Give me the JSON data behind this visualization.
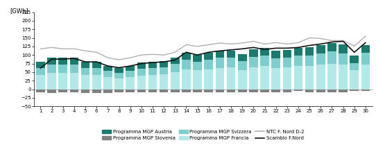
{
  "days": [
    1,
    2,
    3,
    4,
    5,
    6,
    7,
    8,
    9,
    10,
    11,
    12,
    13,
    14,
    15,
    16,
    17,
    18,
    19,
    20,
    21,
    22,
    23,
    24,
    25,
    26,
    27,
    28,
    29,
    30
  ],
  "austria": [
    18,
    20,
    20,
    20,
    18,
    18,
    16,
    16,
    16,
    18,
    18,
    18,
    18,
    20,
    20,
    20,
    20,
    20,
    20,
    22,
    22,
    22,
    22,
    22,
    25,
    25,
    25,
    25,
    22,
    22
  ],
  "slovenia": [
    -8,
    -10,
    -8,
    -8,
    -10,
    -10,
    -10,
    -8,
    -8,
    -8,
    -8,
    -8,
    -8,
    -8,
    -8,
    -8,
    -8,
    -8,
    -8,
    -8,
    -8,
    -8,
    -8,
    -5,
    -8,
    -8,
    -8,
    -8,
    -5,
    -5
  ],
  "svizzera": [
    20,
    25,
    25,
    24,
    20,
    20,
    18,
    15,
    18,
    20,
    20,
    20,
    25,
    28,
    25,
    28,
    30,
    28,
    28,
    30,
    30,
    28,
    28,
    30,
    30,
    32,
    35,
    33,
    22,
    35
  ],
  "francia": [
    42,
    48,
    48,
    48,
    42,
    42,
    35,
    32,
    35,
    40,
    42,
    44,
    50,
    58,
    55,
    58,
    62,
    65,
    55,
    65,
    68,
    62,
    65,
    68,
    68,
    72,
    75,
    72,
    55,
    72
  ],
  "ntc": [
    118,
    122,
    118,
    118,
    112,
    108,
    92,
    86,
    92,
    100,
    102,
    100,
    108,
    130,
    125,
    130,
    135,
    132,
    135,
    140,
    132,
    136,
    132,
    136,
    150,
    148,
    142,
    142,
    126,
    155
  ],
  "scambio": [
    62,
    88,
    88,
    90,
    80,
    80,
    68,
    63,
    68,
    75,
    78,
    80,
    85,
    108,
    100,
    108,
    112,
    115,
    118,
    122,
    116,
    120,
    120,
    122,
    128,
    132,
    138,
    140,
    108,
    136
  ],
  "color_austria": "#1a7a6e",
  "color_slovenia": "#808080",
  "color_svizzera": "#7ecece",
  "color_francia": "#b2e8e8",
  "color_ntc": "#b0b0b0",
  "color_scambio": "#111111",
  "ylabel": "[GWh]",
  "ylim_min": -50,
  "ylim_max": 225,
  "yticks": [
    -50,
    -25,
    0,
    25,
    50,
    75,
    100,
    125,
    150,
    175,
    200,
    225
  ],
  "legend_labels": [
    "Programma MGP Austria",
    "Programma MGP Slovenia",
    "Programma MGP Svizzera",
    "Programma MGP Francia",
    "NTC F. Nord D-2",
    "Scambio F.Nord"
  ],
  "legend_row1": [
    "Programma MGP Austria",
    "Programma MGP Slovenia",
    "Programma MGP Svizzera"
  ],
  "legend_row2": [
    "Programma MGP Francia",
    "NTC F. Nord D-2",
    "Scambio F.Nord"
  ]
}
